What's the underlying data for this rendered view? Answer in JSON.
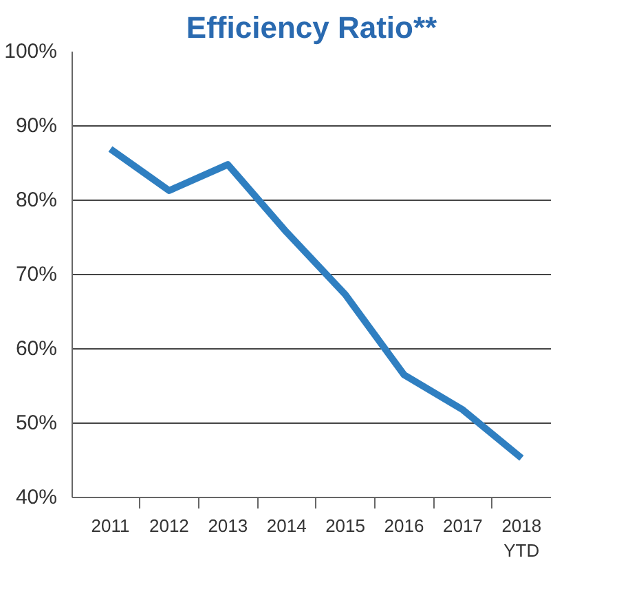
{
  "chart_data": {
    "type": "line",
    "title": "Efficiency Ratio**",
    "categories": [
      "2011",
      "2012",
      "2013",
      "2014",
      "2015",
      "2016",
      "2017",
      "2018\nYTD"
    ],
    "series": [
      {
        "color": "#2f7fc1",
        "values": [
          86.9,
          81.3,
          84.8,
          75.7,
          67.3,
          56.5,
          51.8,
          45.3
        ]
      }
    ],
    "ylim": [
      40,
      100
    ],
    "yticks": [
      {
        "value": 40,
        "label": "40%"
      },
      {
        "value": 50,
        "label": "50%"
      },
      {
        "value": 60,
        "label": "60%"
      },
      {
        "value": 70,
        "label": "70%"
      },
      {
        "value": 80,
        "label": "80%"
      },
      {
        "value": 90,
        "label": "90%"
      },
      {
        "value": 100,
        "label": "100%"
      }
    ],
    "grid": "y",
    "marker": "none",
    "line_style": "solid"
  }
}
